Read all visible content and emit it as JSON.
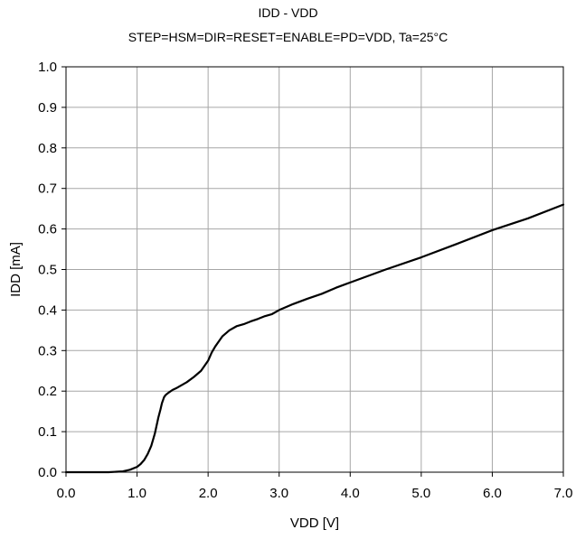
{
  "chart_data": {
    "type": "line",
    "title": "IDD - VDD",
    "subtitle": "STEP=HSM=DIR=RESET=ENABLE=PD=VDD, Ta=25°C",
    "xlabel": "VDD [V]",
    "ylabel": "IDD [mA]",
    "xlim": [
      0.0,
      7.0
    ],
    "ylim": [
      0.0,
      1.0
    ],
    "xticks": [
      "0.0",
      "1.0",
      "2.0",
      "3.0",
      "4.0",
      "5.0",
      "6.0",
      "7.0"
    ],
    "yticks": [
      "0.0",
      "0.1",
      "0.2",
      "0.3",
      "0.4",
      "0.5",
      "0.6",
      "0.7",
      "0.8",
      "0.9",
      "1.0"
    ],
    "grid": true,
    "series": [
      {
        "color": "#000000",
        "x": [
          0.0,
          0.6,
          0.8,
          0.9,
          1.0,
          1.05,
          1.1,
          1.15,
          1.2,
          1.25,
          1.3,
          1.33,
          1.35,
          1.38,
          1.4,
          1.42,
          1.45,
          1.5,
          1.55,
          1.6,
          1.7,
          1.8,
          1.9,
          2.0,
          2.05,
          2.1,
          2.2,
          2.3,
          2.4,
          2.5,
          2.6,
          2.7,
          2.8,
          2.9,
          3.0,
          3.2,
          3.4,
          3.6,
          3.8,
          4.0,
          4.5,
          5.0,
          5.5,
          6.0,
          6.5,
          7.0
        ],
        "y": [
          0.0,
          0.0,
          0.002,
          0.006,
          0.013,
          0.02,
          0.03,
          0.045,
          0.065,
          0.095,
          0.135,
          0.155,
          0.17,
          0.185,
          0.19,
          0.193,
          0.197,
          0.203,
          0.207,
          0.212,
          0.222,
          0.235,
          0.25,
          0.275,
          0.295,
          0.31,
          0.335,
          0.35,
          0.36,
          0.365,
          0.372,
          0.378,
          0.385,
          0.39,
          0.4,
          0.415,
          0.428,
          0.44,
          0.455,
          0.468,
          0.5,
          0.53,
          0.563,
          0.597,
          0.626,
          0.66
        ]
      }
    ]
  }
}
